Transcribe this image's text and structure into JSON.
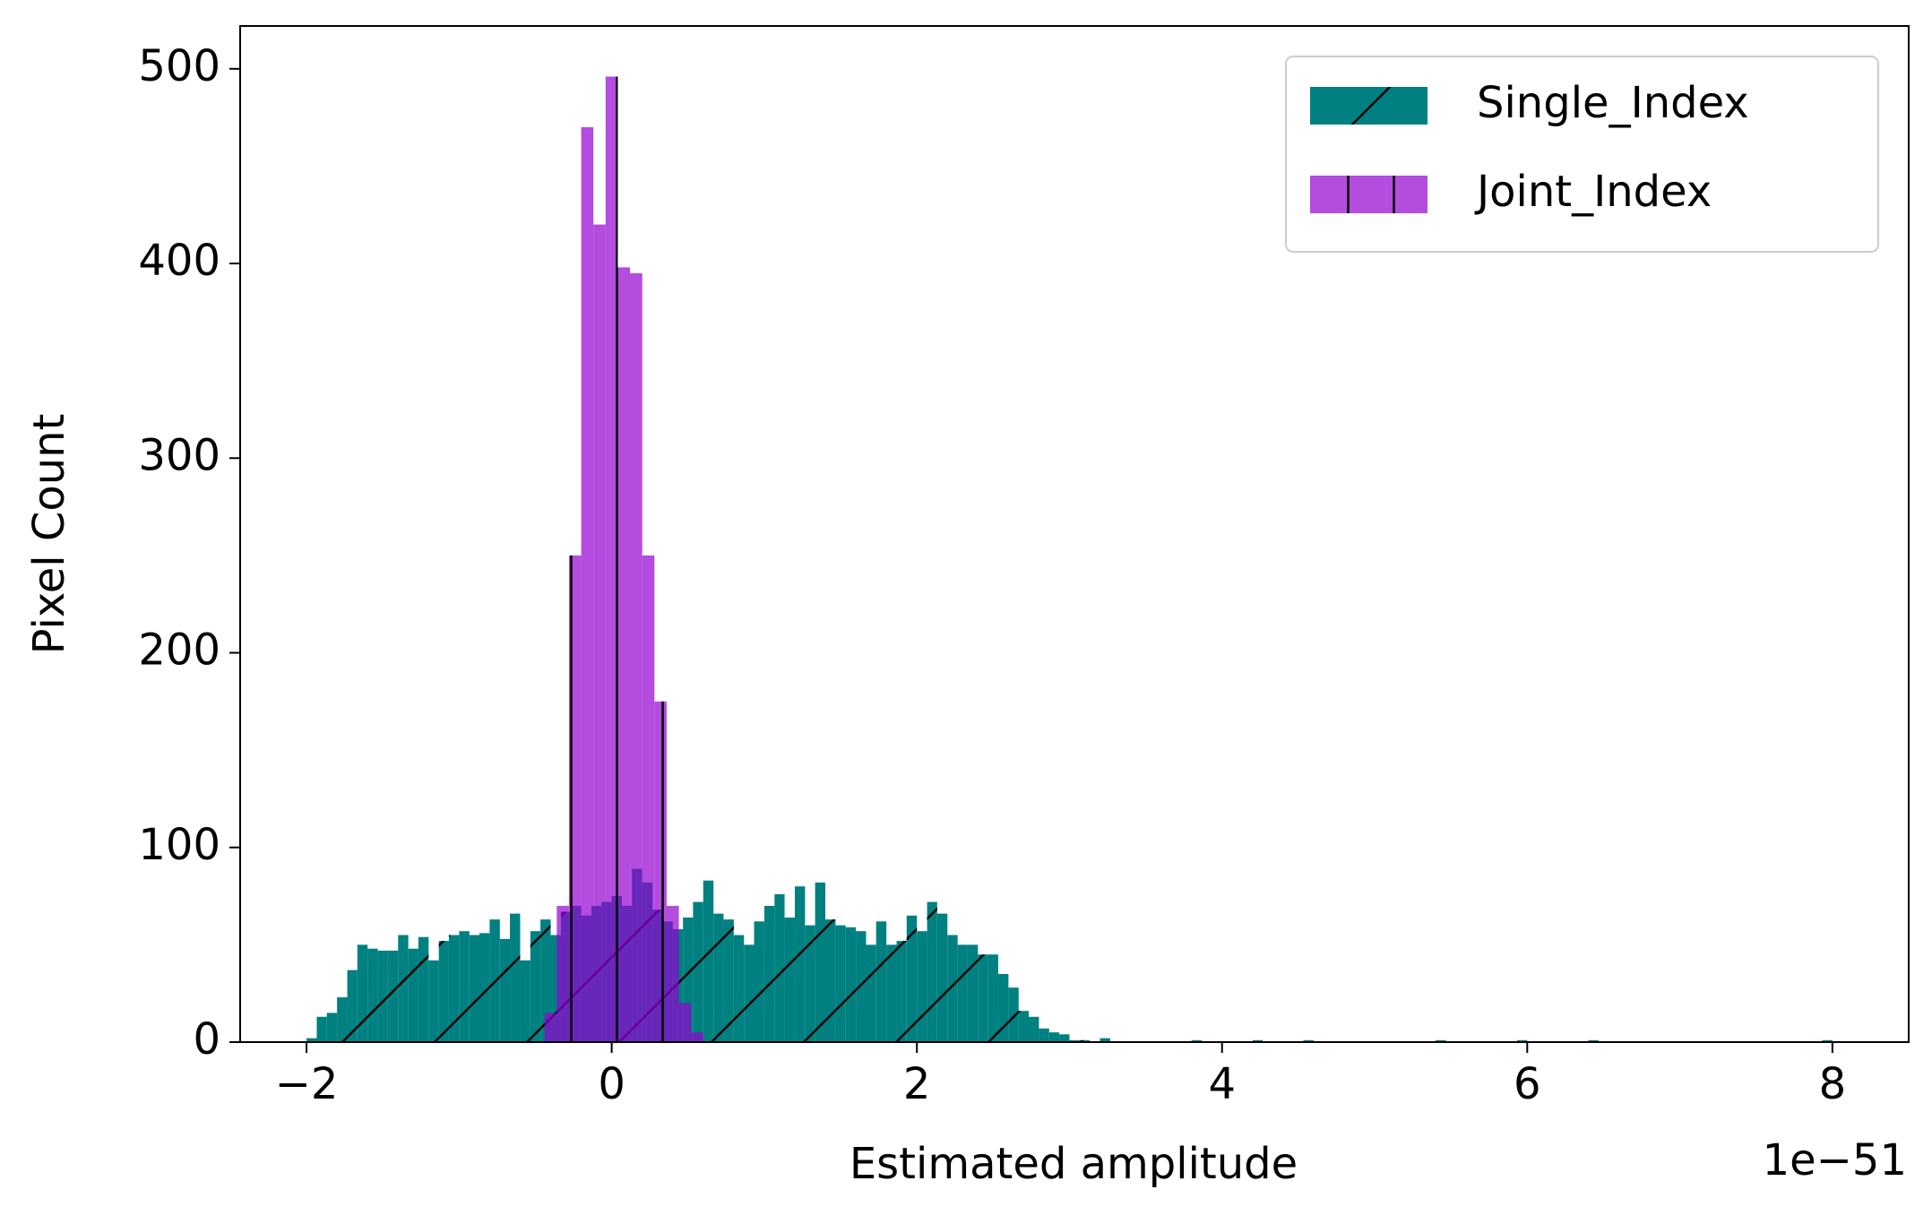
{
  "chart_data": {
    "type": "histogram",
    "xlabel": "Estimated amplitude",
    "ylabel": "Pixel Count",
    "x_offset_label": "1e−51",
    "xlim": [
      -2.435,
      8.5
    ],
    "ylim": [
      0,
      522
    ],
    "xticks": [
      {
        "value": -2,
        "label": "−2"
      },
      0,
      2,
      4,
      6,
      8
    ],
    "yticks": [
      0,
      100,
      200,
      300,
      400,
      500
    ],
    "legend": "upper right",
    "series": [
      {
        "name": "Single_Index",
        "color": "#008080",
        "alpha": 1,
        "hatch": "/",
        "bins": [
          -2,
          -1.933,
          -1.867,
          -1.8,
          -1.733,
          -1.667,
          -1.6,
          -1.533,
          -1.467,
          -1.4,
          -1.333,
          -1.267,
          -1.2,
          -1.133,
          -1.067,
          -1,
          -0.933,
          -0.867,
          -0.8,
          -0.733,
          -0.667,
          -0.6,
          -0.533,
          -0.467,
          -0.4,
          -0.333,
          -0.267,
          -0.2,
          -0.133,
          -0.067,
          0,
          0.067,
          0.133,
          0.2,
          0.267,
          0.333,
          0.4,
          0.467,
          0.533,
          0.6,
          0.667,
          0.733,
          0.8,
          0.867,
          0.933,
          1,
          1.067,
          1.133,
          1.2,
          1.267,
          1.333,
          1.4,
          1.467,
          1.533,
          1.6,
          1.667,
          1.733,
          1.8,
          1.867,
          1.933,
          2,
          2.067,
          2.133,
          2.2,
          2.267,
          2.333,
          2.4,
          2.467,
          2.533,
          2.6,
          2.667,
          2.733,
          2.8,
          2.867,
          2.933,
          3,
          3.067,
          3.133,
          3.2,
          3.267,
          3.333,
          3.4,
          3.467,
          3.533,
          3.6,
          3.667,
          3.733,
          3.8,
          3.867,
          3.933,
          4,
          4.067,
          4.133,
          4.2,
          4.267,
          4.333,
          4.4,
          4.467,
          4.533,
          4.6,
          4.667,
          4.733,
          4.8,
          4.867,
          4.933,
          5,
          5.067,
          5.133,
          5.2,
          5.267,
          5.333,
          5.4,
          5.467,
          5.533,
          5.6,
          5.667,
          5.733,
          5.8,
          5.867,
          5.933,
          6,
          6.067,
          6.133,
          6.2,
          6.267,
          6.333,
          6.4,
          6.467,
          6.533,
          6.6,
          6.667,
          6.733,
          6.8,
          6.867,
          6.933,
          7,
          7.067,
          7.133,
          7.2,
          7.267,
          7.333,
          7.4,
          7.467,
          7.533,
          7.6,
          7.667,
          7.733,
          7.8,
          7.867,
          7.933,
          8
        ],
        "values": [
          2,
          13,
          15,
          23,
          37,
          50,
          48,
          47,
          47,
          55,
          48,
          54,
          42,
          52,
          55,
          57,
          55,
          56,
          63,
          53,
          66,
          42,
          57,
          63,
          55,
          67,
          70,
          65,
          70,
          72,
          75,
          70,
          89,
          82,
          68,
          62,
          58,
          64,
          72,
          83,
          66,
          63,
          55,
          50,
          62,
          70,
          76,
          64,
          80,
          60,
          82,
          63,
          60,
          59,
          57,
          50,
          62,
          50,
          52,
          65,
          57,
          72,
          66,
          55,
          50,
          50,
          45,
          45,
          35,
          28,
          16,
          13,
          7,
          5,
          4,
          1,
          1,
          0,
          2,
          0,
          0,
          0,
          0,
          0,
          0,
          0,
          0,
          1,
          0,
          0,
          0,
          0,
          0,
          1,
          0,
          0,
          0,
          0,
          1,
          0,
          0,
          0,
          0,
          0,
          0,
          0,
          0,
          0,
          0,
          0,
          0,
          1,
          0,
          0,
          0,
          0,
          0,
          0,
          0,
          1,
          0,
          0,
          0,
          0,
          0,
          0,
          1,
          0,
          0,
          0,
          0,
          0,
          0,
          0,
          0,
          0,
          0,
          0,
          0,
          0,
          0,
          0,
          0,
          0,
          0,
          0,
          0,
          0,
          0,
          1
        ]
      },
      {
        "name": "Joint_Index",
        "color": "#9400d3",
        "alpha": 0.7,
        "hatch": "|",
        "bins": [
          -0.44,
          -0.36,
          -0.28,
          -0.2,
          -0.12,
          -0.04,
          0.04,
          0.12,
          0.2,
          0.28,
          0.36,
          0.44,
          0.52,
          0.6
        ],
        "values": [
          15,
          70,
          250,
          470,
          420,
          496,
          398,
          395,
          250,
          175,
          70,
          20,
          5
        ]
      }
    ]
  }
}
